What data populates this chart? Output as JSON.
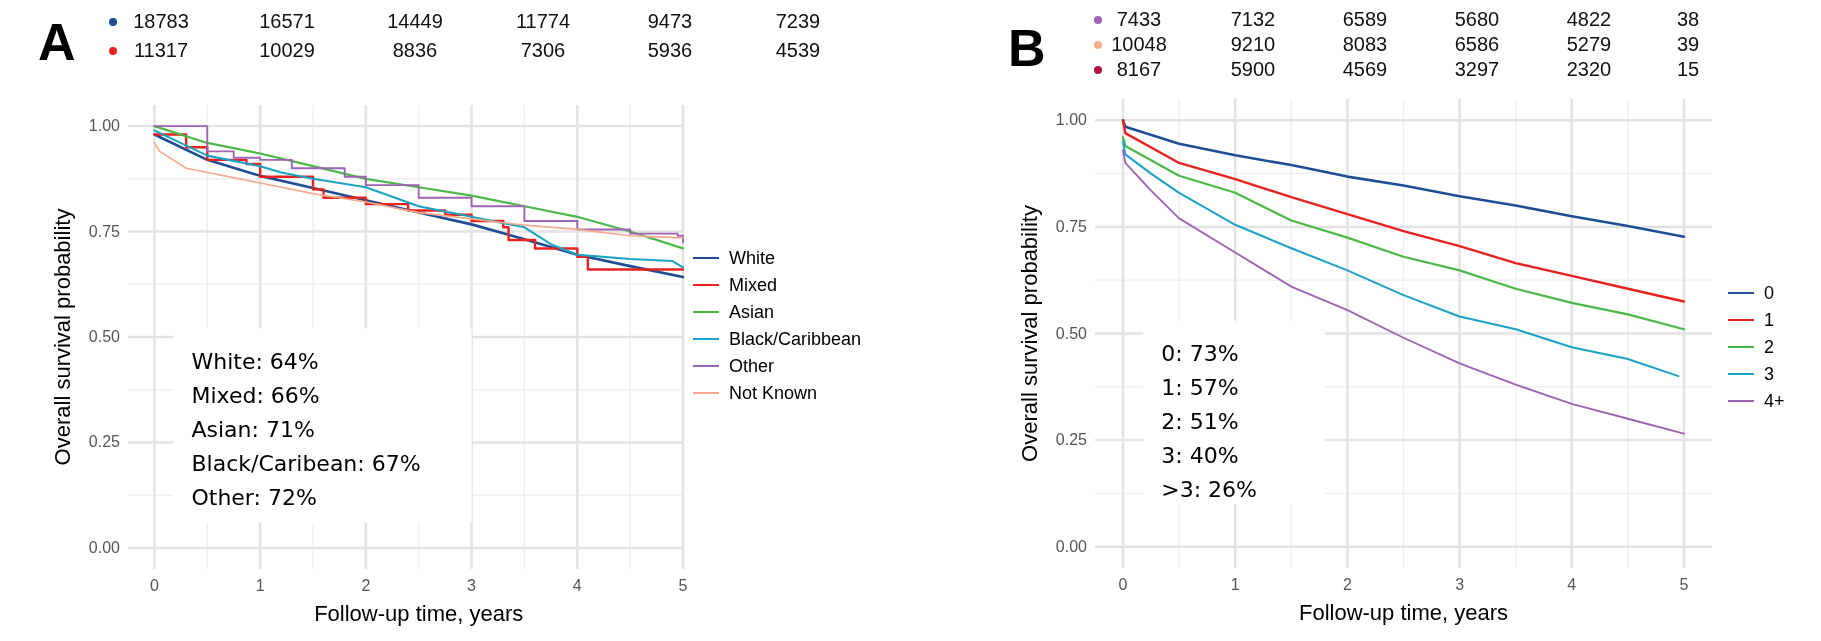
{
  "chart_data": [
    {
      "type": "other",
      "title": "A",
      "annotations": [
        "18783 16571 14449 11774 9473 7239",
        "11317 10029 8836 7306 5936 4539"
      ]
    },
    {
      "type": "line",
      "xlabel": "Follow-up time, years",
      "ylabel": "Overall survival probability",
      "xlim": [
        -0.25,
        5
      ],
      "ylim": [
        -0.05,
        1.05
      ],
      "xticks": [
        0,
        1,
        2,
        3,
        4,
        5
      ],
      "yticks": [
        {
          "value": 0,
          "label": "0.00"
        },
        {
          "value": 0.25,
          "label": "0.25"
        },
        {
          "value": 0.5,
          "label": "0.50"
        },
        {
          "value": 0.75,
          "label": "0.75"
        },
        {
          "value": 1,
          "label": "1.00"
        }
      ],
      "grid": true,
      "legend": "right",
      "line_style": "solid",
      "annotations": [
        "White: 64%",
        "Mixed: 66%",
        "Asian: 71%",
        "Black/Caribean: 67%",
        "Other: 72%"
      ],
      "series": [
        {
          "name": "White",
          "color": "#1f4e96",
          "x": [
            0,
            0.5,
            1,
            1.5,
            2,
            2.5,
            3,
            3.5,
            4,
            4.5,
            5
          ],
          "values": [
            0.98,
            0.92,
            0.882,
            0.853,
            0.824,
            0.795,
            0.767,
            0.732,
            0.695,
            0.668,
            0.642
          ]
        },
        {
          "name": "Mixed",
          "type": "step",
          "color": "#e8221e",
          "x": [
            0,
            0.3,
            0.5,
            0.87,
            1,
            1.5,
            1.6,
            2,
            2.4,
            2.75,
            3,
            3.3,
            3.35,
            3.6,
            4,
            4.1,
            5
          ],
          "values": [
            0.98,
            0.95,
            0.92,
            0.91,
            0.88,
            0.85,
            0.83,
            0.815,
            0.8,
            0.79,
            0.775,
            0.76,
            0.73,
            0.71,
            0.69,
            0.66,
            0.66
          ]
        },
        {
          "name": "Asian",
          "color": "#4cb848",
          "x": [
            0,
            0.5,
            1,
            1.5,
            2,
            2.5,
            3,
            3.5,
            4,
            4.5,
            5
          ],
          "values": [
            1.0,
            0.96,
            0.935,
            0.905,
            0.875,
            0.855,
            0.835,
            0.81,
            0.785,
            0.75,
            0.71
          ]
        },
        {
          "name": "Black/Caribbean",
          "color": "#1ba3c6",
          "x": [
            0,
            0.5,
            1,
            1.2,
            1.5,
            2,
            2.5,
            3,
            3.5,
            3.75,
            4,
            4.5,
            4.9,
            5
          ],
          "values": [
            0.99,
            0.93,
            0.905,
            0.89,
            0.875,
            0.855,
            0.81,
            0.785,
            0.76,
            0.72,
            0.695,
            0.685,
            0.68,
            0.665
          ]
        },
        {
          "name": "Other",
          "type": "step",
          "color": "#9e63b5",
          "x": [
            0,
            0.5,
            0.75,
            1,
            1.3,
            1.7,
            1.8,
            2,
            2.5,
            3,
            3.5,
            4,
            4.5,
            4.95,
            5
          ],
          "values": [
            1.0,
            0.94,
            0.925,
            0.92,
            0.9,
            0.9,
            0.88,
            0.86,
            0.83,
            0.81,
            0.775,
            0.755,
            0.745,
            0.74,
            0.725
          ]
        },
        {
          "name": "Not Known",
          "color": "#f7a98b",
          "x": [
            0,
            0.05,
            0.3,
            1,
            1.5,
            2,
            2.5,
            3,
            3.5,
            4,
            4.5,
            5
          ],
          "values": [
            0.96,
            0.94,
            0.9,
            0.865,
            0.84,
            0.82,
            0.795,
            0.78,
            0.765,
            0.755,
            0.74,
            0.735
          ]
        }
      ]
    },
    {
      "type": "other",
      "title": "B",
      "annotations": [
        "7433 7132 6589 5680 4822 38",
        "10048 9210 8083 6586 5279 39",
        "8167 5900 4569 3297 2320 15"
      ]
    },
    {
      "type": "line",
      "xlabel": "Follow-up time, years",
      "ylabel": "Overall survival probability",
      "xlim": [
        -0.25,
        5.25
      ],
      "ylim": [
        -0.05,
        1.05
      ],
      "xticks": [
        0,
        1,
        2,
        3,
        4,
        5
      ],
      "yticks": [
        {
          "value": 0,
          "label": "0.00"
        },
        {
          "value": 0.25,
          "label": "0.25"
        },
        {
          "value": 0.5,
          "label": "0.50"
        },
        {
          "value": 0.75,
          "label": "0.75"
        },
        {
          "value": 1,
          "label": "1.00"
        }
      ],
      "grid": true,
      "legend": "right",
      "line_style": "solid",
      "annotations": [
        "0: 73%",
        "1: 57%",
        "2: 51%",
        "3: 40%",
        ">3: 26%"
      ],
      "series": [
        {
          "name": "0",
          "color": "#1f4e96",
          "x": [
            0,
            0.02,
            0.5,
            1,
            1.5,
            2,
            2.5,
            3,
            3.5,
            4,
            4.5,
            5
          ],
          "values": [
            1.0,
            0.985,
            0.945,
            0.918,
            0.895,
            0.868,
            0.847,
            0.822,
            0.8,
            0.775,
            0.752,
            0.727
          ]
        },
        {
          "name": "1",
          "color": "#e8221e",
          "x": [
            0,
            0.02,
            0.5,
            1,
            1.5,
            2,
            2.5,
            3,
            3.5,
            4,
            4.5,
            5
          ],
          "values": [
            1.0,
            0.97,
            0.9,
            0.862,
            0.82,
            0.78,
            0.74,
            0.705,
            0.665,
            0.635,
            0.605,
            0.575
          ]
        },
        {
          "name": "2",
          "color": "#4cb848",
          "x": [
            0,
            0.02,
            0.5,
            1,
            1.5,
            2,
            2.5,
            3,
            3.5,
            4,
            4.5,
            5
          ],
          "values": [
            0.96,
            0.94,
            0.87,
            0.83,
            0.765,
            0.725,
            0.68,
            0.648,
            0.605,
            0.572,
            0.545,
            0.51
          ]
        },
        {
          "name": "3",
          "color": "#1ba3c6",
          "x": [
            0,
            0.02,
            0.25,
            0.5,
            1,
            1.5,
            2,
            2.5,
            3,
            3.5,
            4,
            4.5,
            4.95
          ],
          "values": [
            0.95,
            0.92,
            0.875,
            0.83,
            0.755,
            0.7,
            0.648,
            0.59,
            0.54,
            0.51,
            0.468,
            0.44,
            0.4
          ]
        },
        {
          "name": "4+",
          "color": "#9e63b5",
          "x": [
            0,
            0.02,
            0.25,
            0.5,
            1,
            1.5,
            2,
            2.5,
            3,
            3.5,
            4,
            4.5,
            5
          ],
          "values": [
            0.93,
            0.9,
            0.835,
            0.77,
            0.69,
            0.61,
            0.555,
            0.49,
            0.43,
            0.38,
            0.335,
            0.3,
            0.265
          ]
        }
      ]
    }
  ]
}
